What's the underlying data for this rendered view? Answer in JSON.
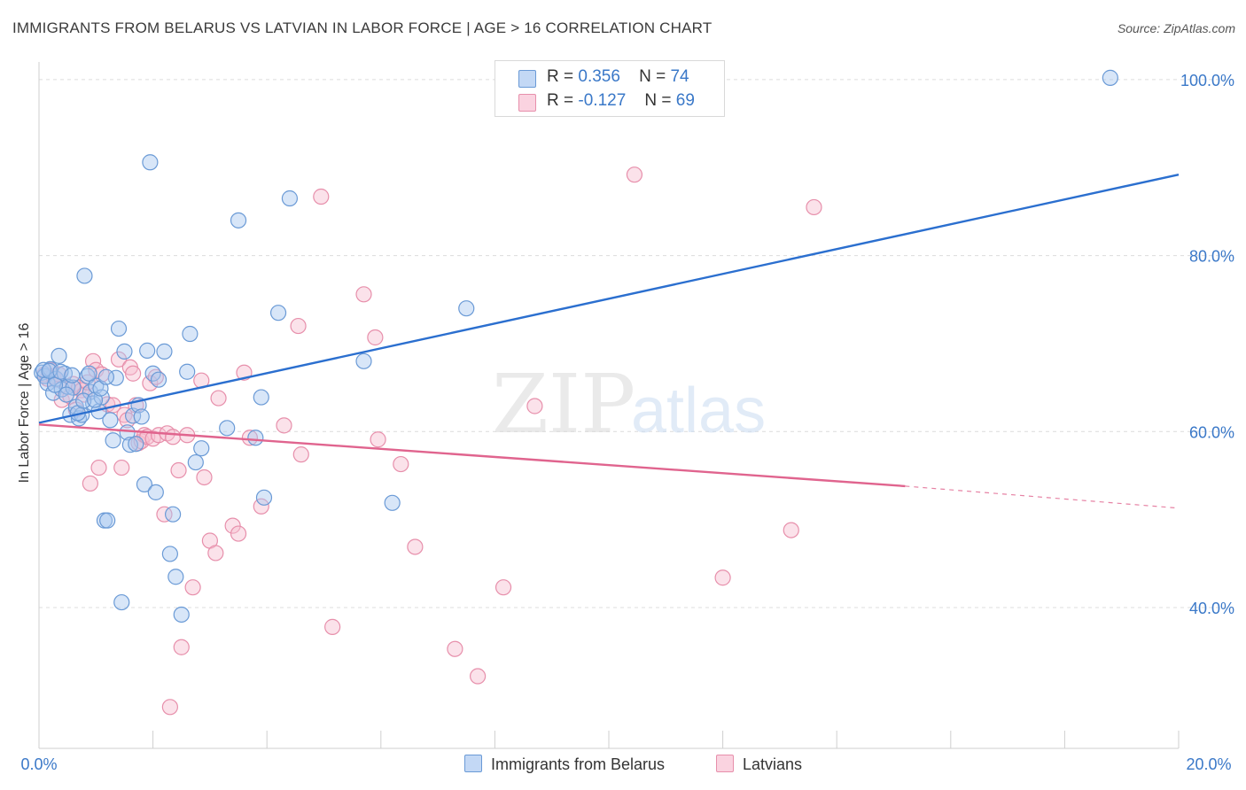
{
  "header": {
    "title": "IMMIGRANTS FROM BELARUS VS LATVIAN IN LABOR FORCE | AGE > 16 CORRELATION CHART",
    "source": "Source: ZipAtlas.com"
  },
  "legend": {
    "rows": [
      {
        "r_label": "R =",
        "r_value": "0.356",
        "n_label": "N =",
        "n_value": "74"
      },
      {
        "r_label": "R =",
        "r_value": "-0.127",
        "n_label": "N =",
        "n_value": "69"
      }
    ]
  },
  "watermark": {
    "zip": "ZIP",
    "atlas": "atlas"
  },
  "colors": {
    "blue_fill": "#a9c8f0",
    "blue_stroke": "#6a9ad6",
    "blue_line": "#2b6fcf",
    "pink_fill": "#f7bfd0",
    "pink_stroke": "#e78fab",
    "pink_line": "#e0648e",
    "tick_text": "#3a78c8",
    "grid": "#dcdcdc"
  },
  "chart_data": {
    "type": "scatter",
    "xlabel": "",
    "ylabel": "In Labor Force | Age > 16",
    "xlim": [
      0,
      20
    ],
    "ylim": [
      24,
      102
    ],
    "x_tick_labels": [
      "0.0%",
      "20.0%"
    ],
    "y_ticks": [
      40,
      60,
      80,
      100
    ],
    "y_tick_labels": [
      "40.0%",
      "60.0%",
      "80.0%",
      "100.0%"
    ],
    "grid": true,
    "legend_position": "top-center",
    "series": [
      {
        "name": "Immigrants from Belarus",
        "color": "#a9c8f0",
        "points": [
          [
            0.05,
            66.7
          ],
          [
            0.1,
            66.3
          ],
          [
            0.15,
            65.5
          ],
          [
            0.2,
            67.1
          ],
          [
            0.25,
            64.4
          ],
          [
            0.3,
            66.0
          ],
          [
            0.35,
            68.6
          ],
          [
            0.4,
            64.8
          ],
          [
            0.45,
            66.6
          ],
          [
            0.5,
            65.1
          ],
          [
            0.55,
            61.9
          ],
          [
            0.6,
            65.0
          ],
          [
            0.65,
            62.8
          ],
          [
            0.7,
            61.5
          ],
          [
            0.75,
            61.9
          ],
          [
            0.8,
            77.7
          ],
          [
            0.85,
            66.3
          ],
          [
            0.9,
            64.5
          ],
          [
            0.95,
            63.2
          ],
          [
            1.0,
            65.2
          ],
          [
            1.05,
            62.3
          ],
          [
            1.1,
            63.9
          ],
          [
            1.15,
            49.9
          ],
          [
            1.2,
            49.9
          ],
          [
            1.25,
            61.3
          ],
          [
            1.3,
            59.0
          ],
          [
            1.35,
            66.1
          ],
          [
            1.4,
            71.7
          ],
          [
            1.45,
            40.6
          ],
          [
            1.5,
            69.1
          ],
          [
            1.55,
            59.9
          ],
          [
            1.6,
            58.5
          ],
          [
            1.65,
            61.8
          ],
          [
            1.7,
            58.6
          ],
          [
            1.75,
            63.0
          ],
          [
            1.8,
            61.7
          ],
          [
            1.85,
            54.0
          ],
          [
            1.9,
            69.2
          ],
          [
            1.95,
            90.6
          ],
          [
            2.0,
            66.6
          ],
          [
            2.05,
            53.1
          ],
          [
            2.1,
            65.9
          ],
          [
            2.2,
            69.1
          ],
          [
            2.3,
            46.1
          ],
          [
            2.35,
            50.6
          ],
          [
            2.4,
            43.5
          ],
          [
            2.5,
            39.2
          ],
          [
            2.6,
            66.8
          ],
          [
            2.65,
            71.1
          ],
          [
            2.75,
            56.5
          ],
          [
            2.85,
            58.1
          ],
          [
            3.3,
            60.4
          ],
          [
            3.5,
            84.0
          ],
          [
            3.8,
            59.3
          ],
          [
            3.9,
            63.9
          ],
          [
            3.95,
            52.5
          ],
          [
            4.2,
            73.5
          ],
          [
            4.4,
            86.5
          ],
          [
            5.7,
            68.0
          ],
          [
            6.2,
            51.9
          ],
          [
            7.5,
            74.0
          ],
          [
            18.8,
            100.2
          ],
          [
            0.08,
            67.0
          ],
          [
            0.18,
            66.9
          ],
          [
            0.28,
            65.3
          ],
          [
            0.38,
            66.8
          ],
          [
            0.48,
            64.2
          ],
          [
            0.58,
            66.4
          ],
          [
            0.68,
            62.1
          ],
          [
            0.78,
            63.5
          ],
          [
            0.88,
            66.6
          ],
          [
            0.98,
            63.6
          ],
          [
            1.08,
            64.9
          ],
          [
            1.18,
            66.2
          ]
        ]
      },
      {
        "name": "Latvians",
        "color": "#f7bfd0",
        "points": [
          [
            0.1,
            66.5
          ],
          [
            0.15,
            66.0
          ],
          [
            0.2,
            67.0
          ],
          [
            0.25,
            66.3
          ],
          [
            0.3,
            65.9
          ],
          [
            0.35,
            66.5
          ],
          [
            0.4,
            63.6
          ],
          [
            0.5,
            65.1
          ],
          [
            0.55,
            64.0
          ],
          [
            0.6,
            65.4
          ],
          [
            0.65,
            62.5
          ],
          [
            0.7,
            65.0
          ],
          [
            0.75,
            64.7
          ],
          [
            0.8,
            64.2
          ],
          [
            0.85,
            65.6
          ],
          [
            0.9,
            54.1
          ],
          [
            0.95,
            68.0
          ],
          [
            1.0,
            67.0
          ],
          [
            1.05,
            55.9
          ],
          [
            1.1,
            66.5
          ],
          [
            1.2,
            63.1
          ],
          [
            1.3,
            63.0
          ],
          [
            1.4,
            68.2
          ],
          [
            1.45,
            55.9
          ],
          [
            1.5,
            61.9
          ],
          [
            1.55,
            61.3
          ],
          [
            1.6,
            67.3
          ],
          [
            1.65,
            66.6
          ],
          [
            1.7,
            63.0
          ],
          [
            1.75,
            58.7
          ],
          [
            1.8,
            58.9
          ],
          [
            1.85,
            59.6
          ],
          [
            1.9,
            59.4
          ],
          [
            1.95,
            65.5
          ],
          [
            2.0,
            59.2
          ],
          [
            2.05,
            66.2
          ],
          [
            2.1,
            59.6
          ],
          [
            2.2,
            50.6
          ],
          [
            2.25,
            59.8
          ],
          [
            2.3,
            28.7
          ],
          [
            2.35,
            59.4
          ],
          [
            2.45,
            55.6
          ],
          [
            2.5,
            35.5
          ],
          [
            2.6,
            59.6
          ],
          [
            2.7,
            42.3
          ],
          [
            2.85,
            65.8
          ],
          [
            2.9,
            54.8
          ],
          [
            3.0,
            47.6
          ],
          [
            3.1,
            46.2
          ],
          [
            3.15,
            63.8
          ],
          [
            3.4,
            49.3
          ],
          [
            3.5,
            48.4
          ],
          [
            3.9,
            51.5
          ],
          [
            4.3,
            60.7
          ],
          [
            4.55,
            72.0
          ],
          [
            4.6,
            57.4
          ],
          [
            4.95,
            86.7
          ],
          [
            5.15,
            37.8
          ],
          [
            5.7,
            75.6
          ],
          [
            5.9,
            70.7
          ],
          [
            5.95,
            59.1
          ],
          [
            6.35,
            56.3
          ],
          [
            6.6,
            46.9
          ],
          [
            7.3,
            35.3
          ],
          [
            7.7,
            32.2
          ],
          [
            8.15,
            42.3
          ],
          [
            8.7,
            62.9
          ],
          [
            10.45,
            89.2
          ],
          [
            12.0,
            43.4
          ]
        ]
      }
    ],
    "trend_lines": [
      {
        "series": "Immigrants from Belarus",
        "from": [
          0.0,
          61.0
        ],
        "to": [
          20.0,
          89.2
        ]
      },
      {
        "series": "Latvians",
        "from": [
          0.0,
          60.8
        ],
        "to": [
          15.2,
          53.8
        ],
        "dashed_to": [
          20.0,
          51.3
        ]
      }
    ],
    "extra_points": {
      "Latvians": [
        [
          3.6,
          66.7
        ],
        [
          3.7,
          59.3
        ],
        [
          13.2,
          48.8
        ],
        [
          13.6,
          85.5
        ]
      ]
    }
  }
}
